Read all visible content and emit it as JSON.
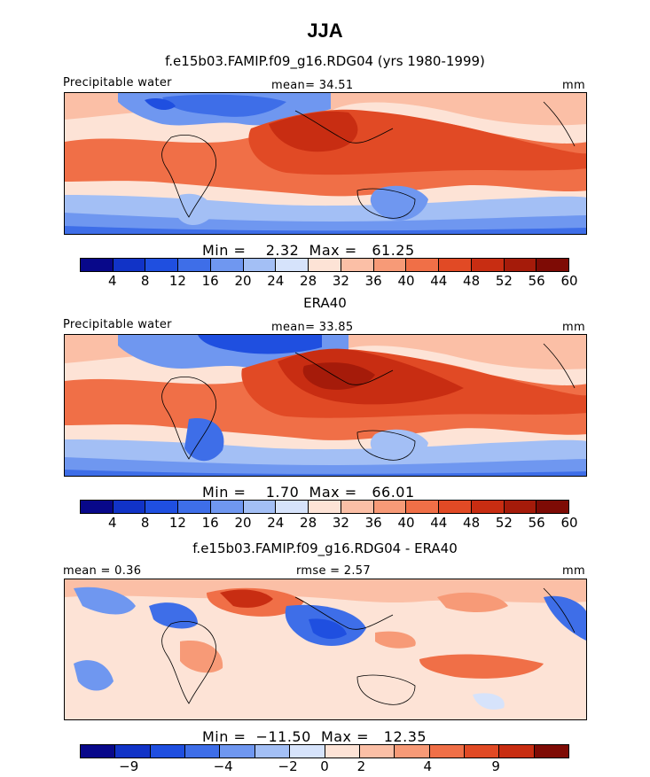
{
  "figure": {
    "title": "JJA"
  },
  "panels": [
    {
      "title": "f.e15b03.FAMIP.f09_g16.RDG04 (yrs 1980-1999)",
      "left_label": "Precipitable water",
      "center_label": "mean=  34.51",
      "right_label": "mm",
      "stats_line": "Min =    2.32  Max =   61.25",
      "colorbar": {
        "colors": [
          "#08088a",
          "#1133c7",
          "#1f4fe0",
          "#3e6ee8",
          "#6f97f0",
          "#a3bff5",
          "#d6e3fb",
          "#fde3d6",
          "#fbbfa6",
          "#f79a77",
          "#f06f47",
          "#e14a25",
          "#c82d12",
          "#a51b0a",
          "#7e0b05"
        ],
        "labels": [
          "4",
          "8",
          "12",
          "16",
          "20",
          "24",
          "28",
          "32",
          "36",
          "40",
          "44",
          "48",
          "52",
          "56",
          "60"
        ]
      }
    },
    {
      "title": "ERA40",
      "left_label": "Precipitable water",
      "center_label": "mean=  33.85",
      "right_label": "mm",
      "stats_line": "Min =    1.70  Max =   66.01",
      "colorbar": {
        "colors": [
          "#08088a",
          "#1133c7",
          "#1f4fe0",
          "#3e6ee8",
          "#6f97f0",
          "#a3bff5",
          "#d6e3fb",
          "#fde3d6",
          "#fbbfa6",
          "#f79a77",
          "#f06f47",
          "#e14a25",
          "#c82d12",
          "#a51b0a",
          "#7e0b05"
        ],
        "labels": [
          "4",
          "8",
          "12",
          "16",
          "20",
          "24",
          "28",
          "32",
          "36",
          "40",
          "44",
          "48",
          "52",
          "56",
          "60"
        ]
      }
    },
    {
      "title": "f.e15b03.FAMIP.f09_g16.RDG04 - ERA40",
      "left_label": "mean =    0.36",
      "center_label": "rmse =    2.57",
      "right_label": "mm",
      "stats_line": "Min =  −11.50  Max =   12.35",
      "colorbar": {
        "colors": [
          "#08088a",
          "#1133c7",
          "#1f4fe0",
          "#3e6ee8",
          "#6f97f0",
          "#a3bff5",
          "#d6e3fb",
          "#fde3d6",
          "#fbbfa6",
          "#f79a77",
          "#f06f47",
          "#e14a25",
          "#c82d12",
          "#7e0b05"
        ],
        "labels": [
          "−9",
          "−4",
          "−2",
          "0",
          "2",
          "4",
          "9"
        ]
      }
    }
  ]
}
